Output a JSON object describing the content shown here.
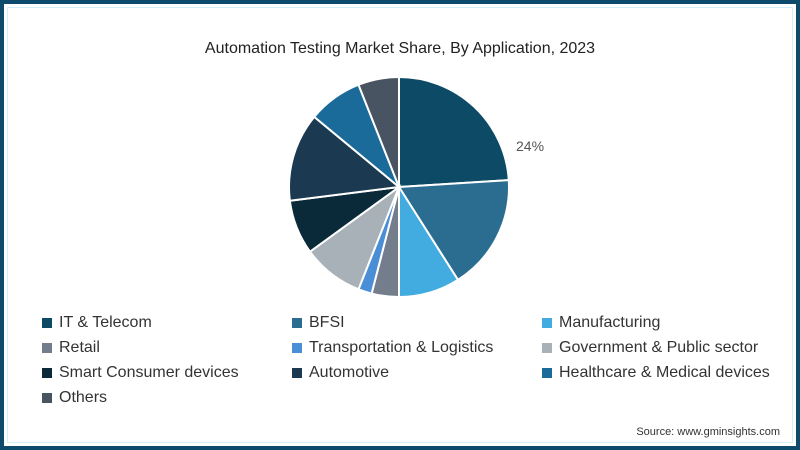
{
  "chart_data": {
    "type": "pie",
    "title": "Automation Testing Market Share, By Application, 2023",
    "categories": [
      "IT & Telecom",
      "BFSI",
      "Manufacturing",
      "Retail",
      "Transportation & Logistics",
      "Government & Public sector",
      "Smart Consumer devices",
      "Automotive",
      "Healthcare & Medical devices",
      "Others"
    ],
    "values": [
      24,
      17,
      9,
      4,
      2,
      9,
      8,
      13,
      8,
      6
    ],
    "colors": [
      "#0d4a66",
      "#2b6d91",
      "#42ace0",
      "#737d8c",
      "#4a8fd6",
      "#a8b0b8",
      "#0a2a3a",
      "#1b3a52",
      "#1a6a9a",
      "#495463"
    ],
    "annotations": [
      {
        "slice": "IT & Telecom",
        "text": "24%"
      }
    ],
    "legend_position": "bottom",
    "source": "Source: www.gminsights.com"
  },
  "legend": [
    {
      "label": "IT & Telecom",
      "color": "#0d4a66"
    },
    {
      "label": "BFSI",
      "color": "#2b6d91"
    },
    {
      "label": "Manufacturing",
      "color": "#42ace0"
    },
    {
      "label": "Retail",
      "color": "#737d8c"
    },
    {
      "label": "Transportation & Logistics",
      "color": "#4a8fd6"
    },
    {
      "label": "Government & Public sector",
      "color": "#a8b0b8"
    },
    {
      "label": "Smart Consumer devices",
      "color": "#0a2a3a"
    },
    {
      "label": "Automotive",
      "color": "#1b3a52"
    },
    {
      "label": "Healthcare & Medical devices",
      "color": "#1a6a9a"
    },
    {
      "label": "Others",
      "color": "#495463"
    }
  ],
  "title": "Automation Testing Market Share, By Application, 2023",
  "annotation": "24%",
  "source": "Source: www.gminsights.com"
}
